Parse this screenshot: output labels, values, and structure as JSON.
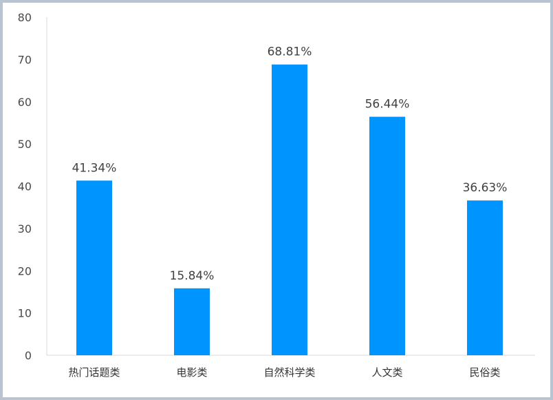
{
  "chart_data": {
    "type": "bar",
    "categories": [
      "热门话题类",
      "电影类",
      "自然科学类",
      "人文类",
      "民俗类"
    ],
    "values": [
      41.34,
      15.84,
      68.81,
      56.44,
      36.63
    ],
    "data_labels": [
      "41.34%",
      "15.84%",
      "68.81%",
      "56.44%",
      "36.63%"
    ],
    "yticks": [
      "0",
      "10",
      "20",
      "30",
      "40",
      "50",
      "60",
      "70",
      "80"
    ],
    "ylim": [
      0,
      80
    ],
    "grid": false,
    "bar_color": "#0094ff",
    "axis_color": "#d9d9d9"
  }
}
